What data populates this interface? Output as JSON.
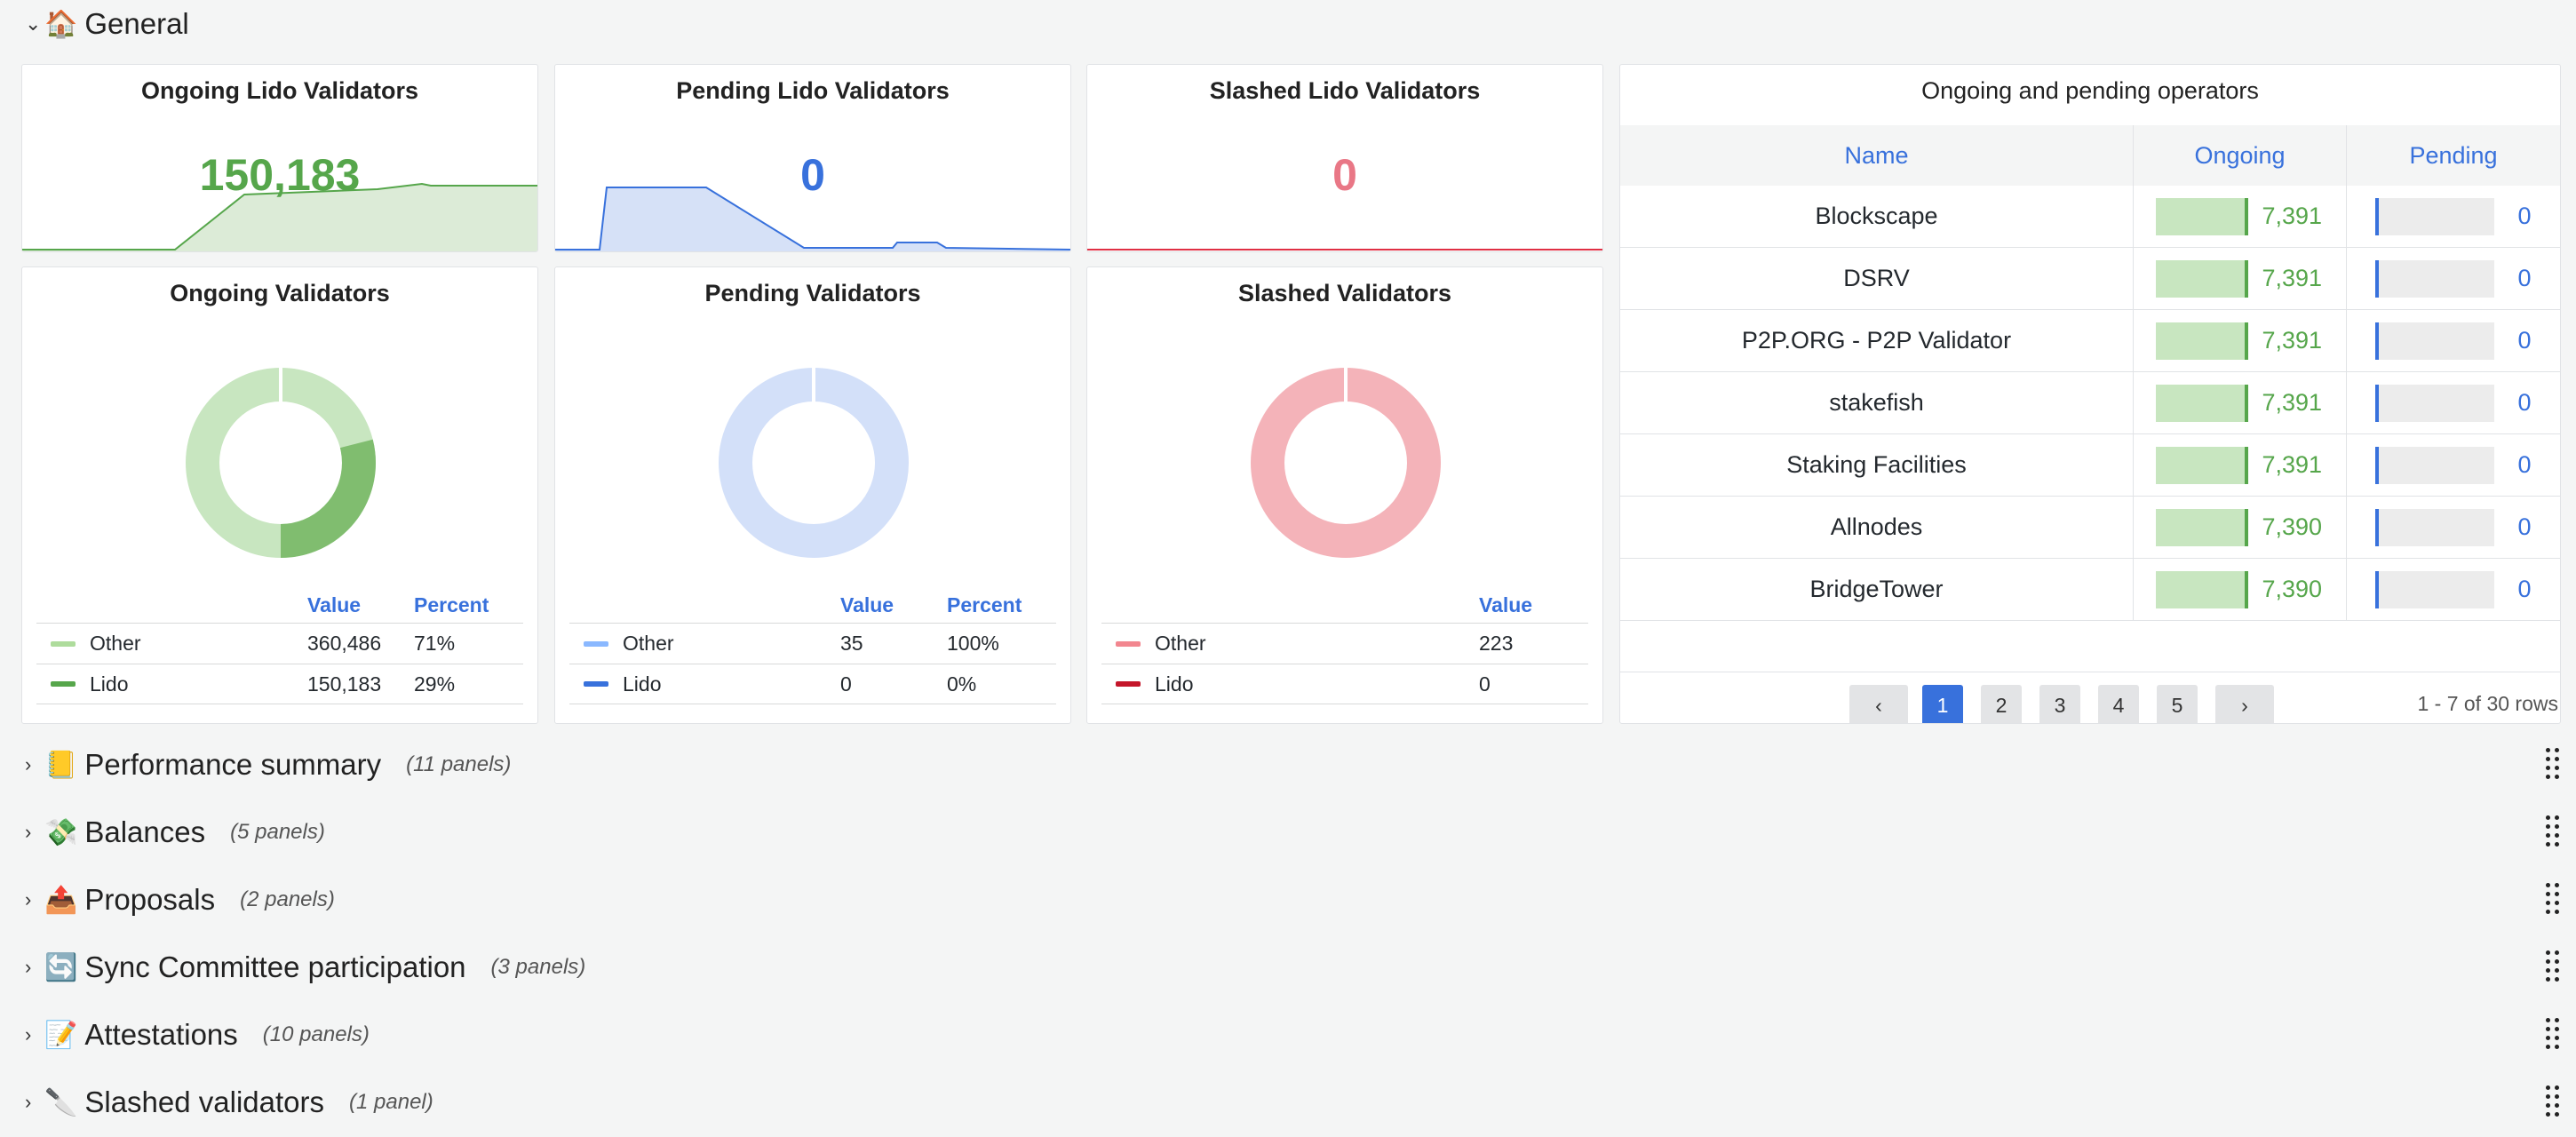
{
  "general": {
    "title": "General",
    "emoji": "🏠"
  },
  "stats": [
    {
      "title": "Ongoing Lido Validators",
      "value": "150,183",
      "color": "#56a64b"
    },
    {
      "title": "Pending Lido Validators",
      "value": "0",
      "color": "#3871dc"
    },
    {
      "title": "Slashed Lido Validators",
      "value": "0",
      "color": "#e02f44"
    }
  ],
  "donuts": [
    {
      "title": "Ongoing Validators",
      "headers": {
        "value": "Value",
        "percent": "Percent"
      },
      "rows": [
        {
          "name": "Other",
          "value": "360,486",
          "percent": "71%",
          "color": "#aedc9c"
        },
        {
          "name": "Lido",
          "value": "150,183",
          "percent": "29%",
          "color": "#56a64b"
        }
      ],
      "share_lido": 0.29
    },
    {
      "title": "Pending Validators",
      "headers": {
        "value": "Value",
        "percent": "Percent"
      },
      "rows": [
        {
          "name": "Other",
          "value": "35",
          "percent": "100%",
          "color": "#8ab8ff"
        },
        {
          "name": "Lido",
          "value": "0",
          "percent": "0%",
          "color": "#3871dc"
        }
      ],
      "share_lido": 0
    },
    {
      "title": "Slashed Validators",
      "headers": {
        "value": "Value",
        "percent": ""
      },
      "rows": [
        {
          "name": "Other",
          "value": "223",
          "percent": "",
          "color": "#f2868f"
        },
        {
          "name": "Lido",
          "value": "0",
          "percent": "",
          "color": "#c4162a"
        }
      ],
      "share_lido": 0
    }
  ],
  "operators": {
    "title": "Ongoing and pending operators",
    "headers": {
      "name": "Name",
      "ongoing": "Ongoing",
      "pending": "Pending"
    },
    "rows": [
      {
        "name": "Blockscape",
        "ongoing": "7,391",
        "pending": "0"
      },
      {
        "name": "DSRV",
        "ongoing": "7,391",
        "pending": "0"
      },
      {
        "name": "P2P.ORG - P2P Validator",
        "ongoing": "7,391",
        "pending": "0"
      },
      {
        "name": "stakefish",
        "ongoing": "7,391",
        "pending": "0"
      },
      {
        "name": "Staking Facilities",
        "ongoing": "7,391",
        "pending": "0"
      },
      {
        "name": "Allnodes",
        "ongoing": "7,390",
        "pending": "0"
      },
      {
        "name": "BridgeTower",
        "ongoing": "7,390",
        "pending": "0"
      }
    ],
    "pagination": {
      "prev": "‹",
      "next": "›",
      "pages": [
        "1",
        "2",
        "3",
        "4",
        "5"
      ],
      "current": "1",
      "info": "1 - 7 of 30 rows"
    }
  },
  "sections": [
    {
      "emoji": "📒",
      "name": "Performance summary",
      "count": "(11 panels)"
    },
    {
      "emoji": "💸",
      "name": "Balances",
      "count": "(5 panels)"
    },
    {
      "emoji": "📤",
      "name": "Proposals",
      "count": "(2 panels)"
    },
    {
      "emoji": "🔄",
      "name": "Sync Committee participation",
      "count": "(3 panels)"
    },
    {
      "emoji": "📝",
      "name": "Attestations",
      "count": "(10 panels)"
    },
    {
      "emoji": "🔪",
      "name": "Slashed validators",
      "count": "(1 panel)"
    }
  ]
}
